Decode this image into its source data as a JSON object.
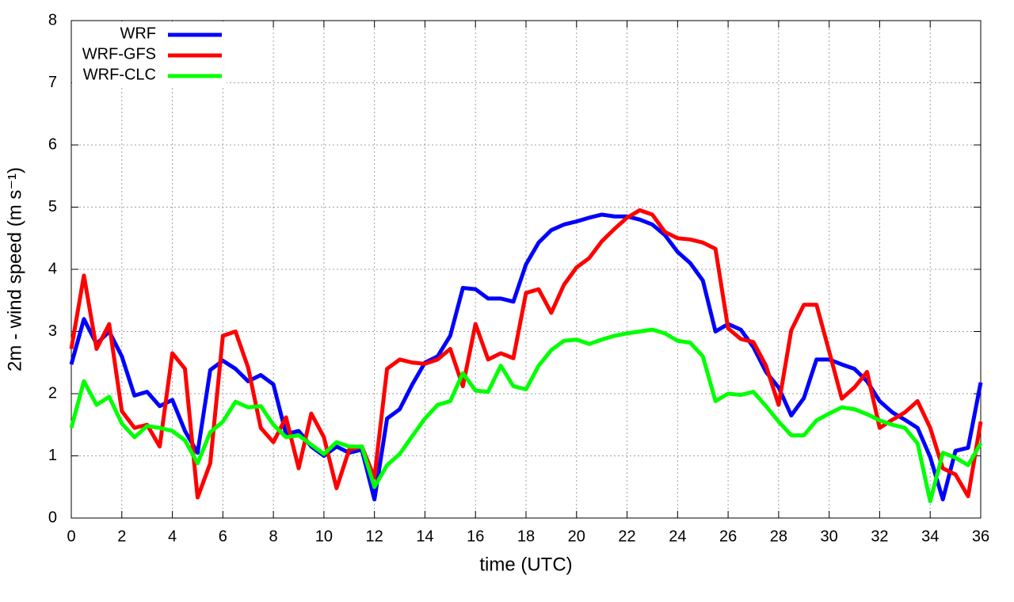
{
  "chart_data": {
    "type": "line",
    "x_label": "time (UTC)",
    "y_label": "2m - wind speed  (m s⁻¹)",
    "x": [
      0,
      0.5,
      1,
      1.5,
      2,
      2.5,
      3,
      3.5,
      4,
      4.5,
      5,
      5.5,
      6,
      6.5,
      7,
      7.5,
      8,
      8.5,
      9,
      9.5,
      10,
      10.5,
      11,
      11.5,
      12,
      12.5,
      13,
      13.5,
      14,
      14.5,
      15,
      15.5,
      16,
      16.5,
      17,
      17.5,
      18,
      18.5,
      19,
      19.5,
      20,
      20.5,
      21,
      21.5,
      22,
      22.5,
      23,
      23.5,
      24,
      24.5,
      25,
      25.5,
      26,
      26.5,
      27,
      27.5,
      28,
      28.5,
      29,
      29.5,
      30,
      30.5,
      31,
      31.5,
      32,
      32.5,
      33,
      33.5,
      34,
      34.5,
      35,
      35.5,
      36
    ],
    "series": [
      {
        "name": "WRF",
        "color": "#0000ff",
        "values": [
          2.47,
          3.2,
          2.8,
          3.0,
          2.6,
          1.97,
          2.03,
          1.8,
          1.9,
          1.4,
          1.05,
          2.38,
          2.53,
          2.4,
          2.2,
          2.3,
          2.15,
          1.35,
          1.4,
          1.15,
          1.0,
          1.15,
          1.05,
          1.1,
          0.3,
          1.6,
          1.75,
          2.15,
          2.5,
          2.6,
          2.93,
          3.7,
          3.68,
          3.53,
          3.53,
          3.48,
          4.08,
          4.43,
          4.63,
          4.72,
          4.77,
          4.83,
          4.88,
          4.85,
          4.85,
          4.8,
          4.72,
          4.55,
          4.28,
          4.1,
          3.82,
          3.0,
          3.12,
          3.03,
          2.75,
          2.35,
          2.1,
          1.65,
          1.93,
          2.55,
          2.55,
          2.47,
          2.4,
          2.2,
          1.88,
          1.7,
          1.58,
          1.45,
          0.98,
          0.3,
          1.08,
          1.13,
          2.18
        ]
      },
      {
        "name": "WRF-GFS",
        "color": "#ff0000",
        "values": [
          2.72,
          3.9,
          2.72,
          3.12,
          1.72,
          1.45,
          1.5,
          1.15,
          2.65,
          2.4,
          0.33,
          0.88,
          2.93,
          3.0,
          2.42,
          1.45,
          1.22,
          1.62,
          0.8,
          1.68,
          1.3,
          0.48,
          1.1,
          1.15,
          0.65,
          2.4,
          2.55,
          2.5,
          2.48,
          2.55,
          2.72,
          2.12,
          3.12,
          2.55,
          2.65,
          2.57,
          3.62,
          3.68,
          3.3,
          3.75,
          4.03,
          4.18,
          4.45,
          4.65,
          4.83,
          4.95,
          4.88,
          4.6,
          4.5,
          4.48,
          4.43,
          4.33,
          3.05,
          2.88,
          2.83,
          2.45,
          1.82,
          3.02,
          3.43,
          3.43,
          2.68,
          1.92,
          2.1,
          2.35,
          1.45,
          1.58,
          1.7,
          1.88,
          1.45,
          0.8,
          0.7,
          0.35,
          1.55
        ]
      },
      {
        "name": "WRF-CLC",
        "color": "#00ff00",
        "values": [
          1.45,
          2.2,
          1.82,
          1.95,
          1.52,
          1.3,
          1.48,
          1.45,
          1.4,
          1.25,
          0.88,
          1.38,
          1.55,
          1.87,
          1.78,
          1.8,
          1.5,
          1.3,
          1.33,
          1.18,
          1.03,
          1.22,
          1.15,
          1.15,
          0.5,
          0.85,
          1.03,
          1.32,
          1.6,
          1.82,
          1.88,
          2.33,
          2.05,
          2.03,
          2.45,
          2.12,
          2.07,
          2.45,
          2.7,
          2.85,
          2.87,
          2.8,
          2.87,
          2.93,
          2.97,
          3.0,
          3.03,
          2.97,
          2.85,
          2.82,
          2.6,
          1.88,
          2.0,
          1.98,
          2.03,
          1.8,
          1.55,
          1.33,
          1.33,
          1.57,
          1.68,
          1.78,
          1.75,
          1.67,
          1.57,
          1.5,
          1.45,
          1.2,
          0.27,
          1.05,
          0.97,
          0.85,
          1.2
        ]
      }
    ],
    "xlim": [
      0,
      36
    ],
    "xticks": [
      0,
      2,
      4,
      6,
      8,
      10,
      12,
      14,
      16,
      18,
      20,
      22,
      24,
      26,
      28,
      30,
      32,
      34,
      36
    ],
    "ylim": [
      0,
      8
    ],
    "yticks": [
      0,
      1,
      2,
      3,
      4,
      5,
      6,
      7,
      8
    ],
    "grid": true,
    "legend": "top-left"
  }
}
